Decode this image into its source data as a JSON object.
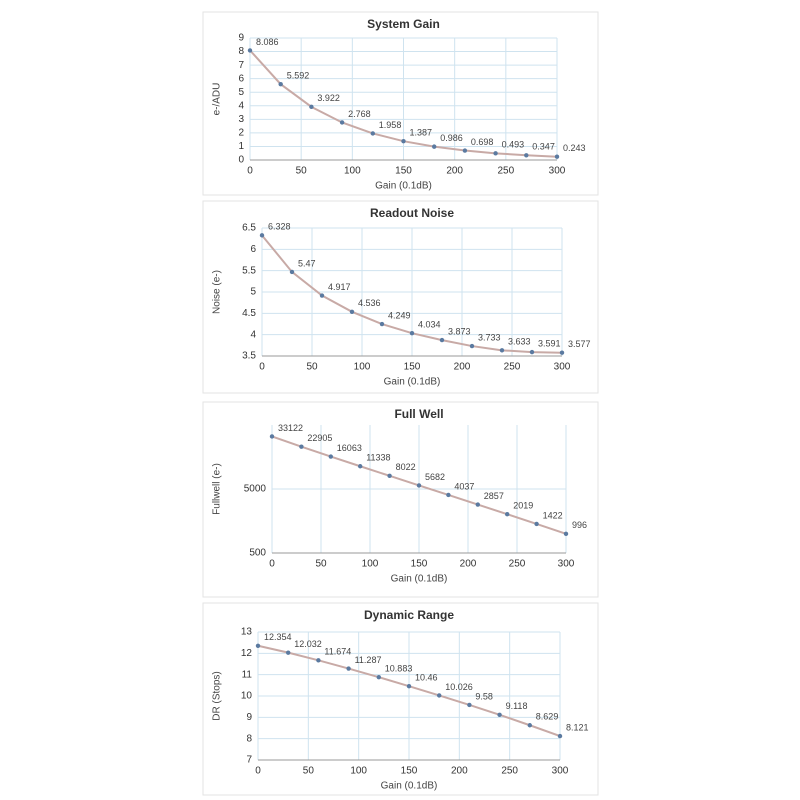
{
  "chart_data": [
    {
      "type": "line",
      "title": "System Gain",
      "xlabel": "Gain (0.1dB)",
      "ylabel": "e-/ADU",
      "x": [
        0,
        30,
        60,
        90,
        120,
        150,
        180,
        210,
        240,
        270,
        300
      ],
      "series": [
        {
          "values": [
            8.086,
            5.592,
            3.922,
            2.768,
            1.958,
            1.387,
            0.986,
            0.698,
            0.493,
            0.347,
            0.243
          ],
          "color": "#c8aaa6",
          "marker_color": "#5b7aa0"
        }
      ],
      "xlim": [
        0,
        300
      ],
      "xticks": [
        0,
        50,
        100,
        150,
        200,
        250,
        300
      ],
      "ylim": [
        0,
        9
      ],
      "yticks": [
        0,
        1,
        2,
        3,
        4,
        5,
        6,
        7,
        8,
        9
      ],
      "grid": true,
      "data_labels": true
    },
    {
      "type": "line",
      "title": "Readout Noise",
      "xlabel": "Gain (0.1dB)",
      "ylabel": "Noise (e-)",
      "x": [
        0,
        30,
        60,
        90,
        120,
        150,
        180,
        210,
        240,
        270,
        300
      ],
      "series": [
        {
          "values": [
            6.328,
            5.47,
            4.917,
            4.536,
            4.249,
            4.034,
            3.873,
            3.733,
            3.633,
            3.591,
            3.577
          ],
          "color": "#c8aaa6",
          "marker_color": "#5b7aa0"
        }
      ],
      "xlim": [
        0,
        300
      ],
      "xticks": [
        0,
        50,
        100,
        150,
        200,
        250,
        300
      ],
      "ylim": [
        3.5,
        6.5
      ],
      "yticks": [
        3.5,
        4,
        4.5,
        5,
        5.5,
        6,
        6.5
      ],
      "grid": true,
      "data_labels": true
    },
    {
      "type": "line",
      "title": "Full Well",
      "xlabel": "Gain (0.1dB)",
      "ylabel": "Fullwell (e-)",
      "x": [
        0,
        30,
        60,
        90,
        120,
        150,
        180,
        210,
        240,
        270,
        300
      ],
      "series": [
        {
          "values": [
            33122,
            22905,
            16063,
            11338,
            8022,
            5682,
            4037,
            2857,
            2019,
            1422,
            996
          ],
          "color": "#c8aaa6",
          "marker_color": "#5b7aa0"
        }
      ],
      "xlim": [
        0,
        300
      ],
      "xticks": [
        0,
        50,
        100,
        150,
        200,
        250,
        300
      ],
      "ylim": [
        500,
        50000
      ],
      "yticks": [
        500,
        5000
      ],
      "yscale": "log",
      "grid": true,
      "data_labels": true
    },
    {
      "type": "line",
      "title": "Dynamic Range",
      "xlabel": "Gain (0.1dB)",
      "ylabel": "DR (Stops)",
      "x": [
        0,
        30,
        60,
        90,
        120,
        150,
        180,
        210,
        240,
        270,
        300
      ],
      "series": [
        {
          "values": [
            12.354,
            12.032,
            11.674,
            11.287,
            10.883,
            10.46,
            10.026,
            9.58,
            9.118,
            8.629,
            8.121
          ],
          "color": "#c8aaa6",
          "marker_color": "#5b7aa0"
        }
      ],
      "xlim": [
        0,
        300
      ],
      "xticks": [
        0,
        50,
        100,
        150,
        200,
        250,
        300
      ],
      "ylim": [
        7,
        13
      ],
      "yticks": [
        7,
        8,
        9,
        10,
        11,
        12,
        13
      ],
      "grid": true,
      "data_labels": true
    }
  ]
}
